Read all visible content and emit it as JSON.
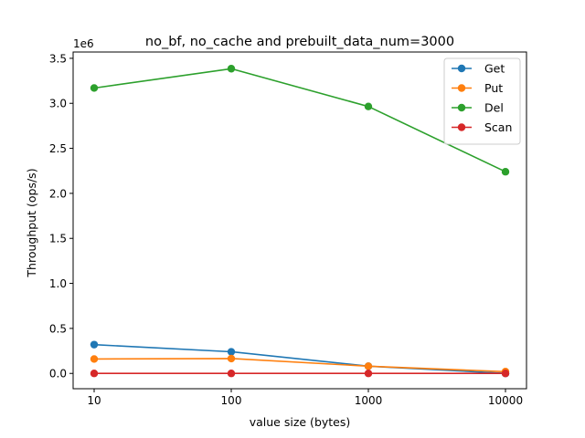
{
  "chart_data": {
    "type": "line",
    "title": "no_bf, no_cache and prebuilt_data_num=3000",
    "xlabel": "value size (bytes)",
    "ylabel": "Throughput (ops/s)",
    "y_offset_label": "1e6",
    "x_scale": "log",
    "x": [
      10,
      100,
      1000,
      10000
    ],
    "x_tick_labels": [
      "10",
      "100",
      "1000",
      "10000"
    ],
    "y_tick_values": [
      0,
      0.5,
      1.0,
      1.5,
      2.0,
      2.5,
      3.0,
      3.5
    ],
    "y_tick_labels": [
      "0.0",
      "0.5",
      "1.0",
      "1.5",
      "2.0",
      "2.5",
      "3.0",
      "3.5"
    ],
    "ylim": [
      -0.17,
      3.57
    ],
    "y_unit_multiplier": 1000000,
    "grid": false,
    "legend_position": "top-right",
    "series": [
      {
        "name": "Get",
        "color": "#1f77b4",
        "values": [
          0.32,
          0.24,
          0.08,
          0.0
        ]
      },
      {
        "name": "Put",
        "color": "#ff7f0e",
        "values": [
          0.16,
          0.165,
          0.08,
          0.02
        ]
      },
      {
        "name": "Del",
        "color": "#2ca02c",
        "values": [
          3.17,
          3.385,
          2.965,
          2.24
        ]
      },
      {
        "name": "Scan",
        "color": "#d62728",
        "values": [
          0.0,
          0.0,
          0.0,
          0.0
        ]
      }
    ]
  }
}
